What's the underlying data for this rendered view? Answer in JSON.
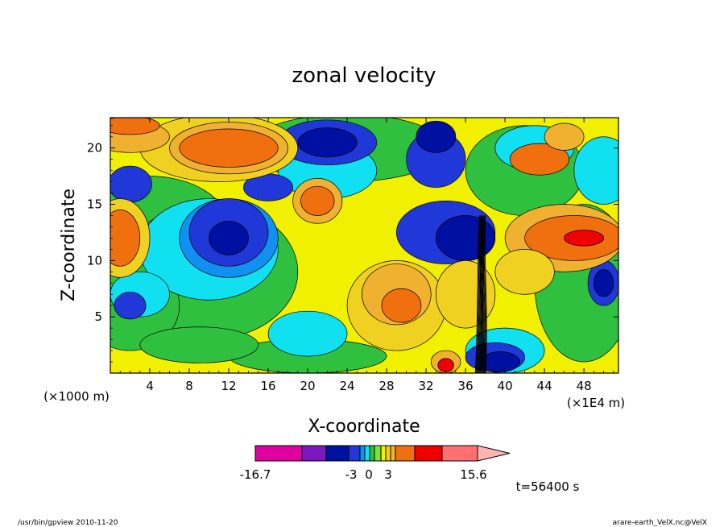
{
  "chart_data": {
    "type": "heatmap",
    "title": "zonal velocity",
    "xlabel": "X-coordinate",
    "ylabel": "Z-coordinate",
    "x_unit": "(×1E4 m)",
    "y_unit": "(×1000 m)",
    "xlim": [
      0,
      51.5
    ],
    "ylim": [
      0,
      22.7
    ],
    "x_ticks": [
      4,
      8,
      12,
      16,
      20,
      24,
      28,
      32,
      36,
      40,
      44,
      48
    ],
    "y_ticks": [
      5,
      10,
      15,
      20
    ],
    "colorbar": {
      "labels": [
        "-16.7",
        "-3",
        "0",
        "3",
        "15.6"
      ],
      "min": -16.7,
      "max": 15.6,
      "colors": [
        "#e000a0",
        "#7a18c0",
        "#0010a0",
        "#2038d8",
        "#1090f0",
        "#10e0f0",
        "#30c040",
        "#80e040",
        "#f0f000",
        "#f0d020",
        "#f0b030",
        "#f07010",
        "#f00000",
        "#ff7070",
        "#ffb4b4"
      ]
    },
    "time_label": "t=56400 s",
    "grid": false
  },
  "footer": {
    "left": "/usr/bin/gpview   2010-11-20",
    "right": "arare-earth_VelX.nc@VelX"
  }
}
